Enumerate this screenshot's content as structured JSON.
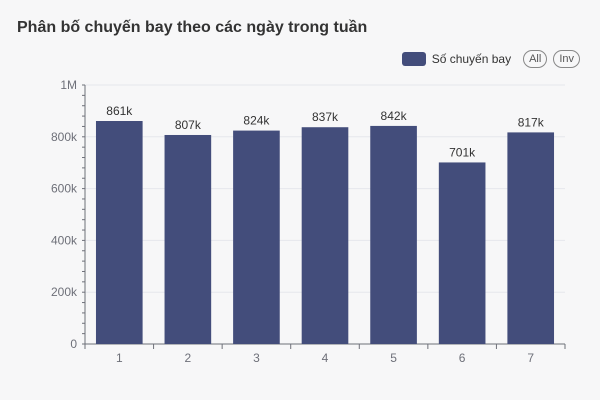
{
  "title": "Phân bố chuyến bay theo các ngày trong tuần",
  "legend": {
    "series_label": "Số chuyến bay",
    "all_button": "All",
    "inv_button": "Inv"
  },
  "colors": {
    "bar": "#434d7b",
    "axis": "#6e7079",
    "grid": "#e6e7ec",
    "text": "#333333"
  },
  "chart_data": {
    "type": "bar",
    "title": "Phân bố chuyến bay theo các ngày trong tuần",
    "categories": [
      "1",
      "2",
      "3",
      "4",
      "5",
      "6",
      "7"
    ],
    "series": [
      {
        "name": "Số chuyến bay",
        "values": [
          861000,
          807000,
          824000,
          837000,
          842000,
          701000,
          817000
        ]
      }
    ],
    "data_labels": [
      "861k",
      "807k",
      "824k",
      "837k",
      "842k",
      "701k",
      "817k"
    ],
    "y_ticks": [
      0,
      200000,
      400000,
      600000,
      800000,
      1000000
    ],
    "y_tick_labels": [
      "0",
      "200k",
      "400k",
      "600k",
      "800k",
      "1M"
    ],
    "ylim": [
      0,
      1000000
    ],
    "xlabel": "",
    "ylabel": "",
    "grid": true,
    "legend_position": "top-right"
  }
}
